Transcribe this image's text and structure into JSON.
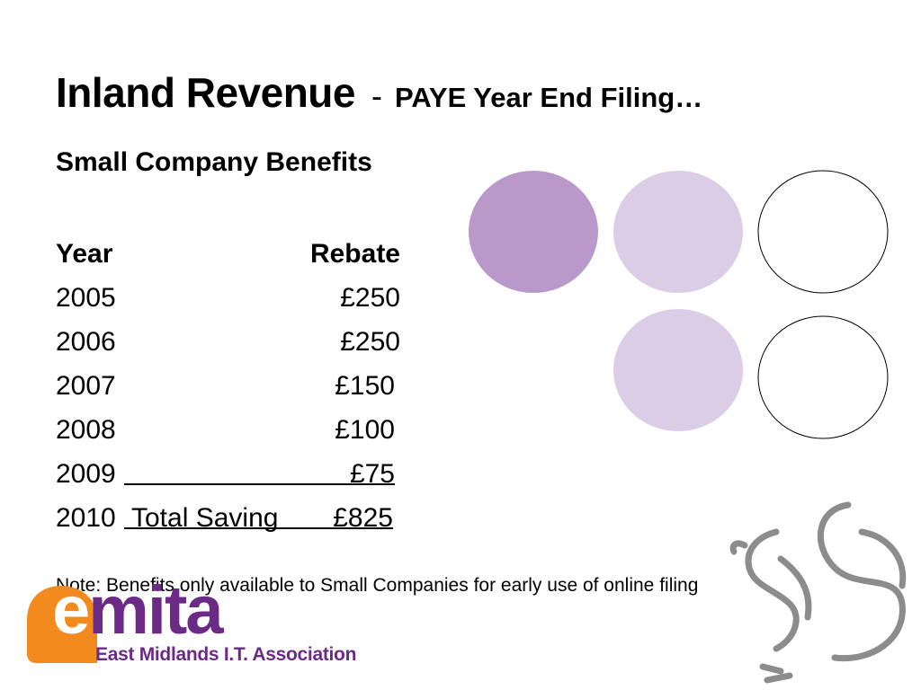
{
  "title": {
    "main": "Inland Revenue",
    "separator": "-",
    "sub": "PAYE Year End Filing…"
  },
  "subtitle": "Small Company Benefits",
  "table": {
    "header_year": "Year",
    "header_rebate": "Rebate",
    "rows": [
      {
        "year": "2005",
        "rebate": "£250"
      },
      {
        "year": "2006",
        "rebate": "£250"
      },
      {
        "year": "2007",
        "rebate": "£150"
      },
      {
        "year": "2008",
        "rebate": "£100"
      },
      {
        "year": "2009",
        "rebate": "£75"
      }
    ],
    "total_year": "2010",
    "total_label": "Total Saving",
    "total_value": "£825"
  },
  "note": "Note: Benefits only available to Small Companies for early use of online filing",
  "logo": {
    "word_first": "e",
    "word_rest": "mita",
    "tagline": "East Midlands I.T. Association"
  },
  "colors": {
    "circle_dark": "#b899c9",
    "circle_light": "#dccde6",
    "logo_orange": "#f28a1e",
    "logo_purple": "#6b2a86",
    "squirrel_gray": "#8c8c8c"
  },
  "icons": {
    "logo_mark": "orange-drop-icon",
    "decoration": "squirrel-outline-icon"
  }
}
